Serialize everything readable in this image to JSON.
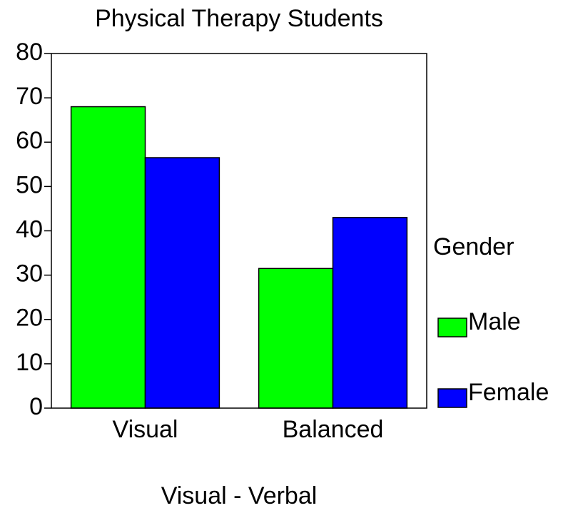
{
  "chart_data": {
    "type": "bar",
    "title": "Physical Therapy Students",
    "x_label": "Visual - Verbal",
    "categories": [
      "Visual",
      "Balanced"
    ],
    "series": [
      {
        "name": "Male",
        "color": "#00ff00",
        "values": [
          68,
          31.5
        ]
      },
      {
        "name": "Female",
        "color": "#0000ff",
        "values": [
          56.5,
          43
        ]
      }
    ],
    "legend_title": "Gender",
    "legend": "right",
    "ylim": [
      0,
      80
    ],
    "yticks": [
      0,
      10,
      20,
      30,
      40,
      50,
      60,
      70,
      80
    ]
  }
}
